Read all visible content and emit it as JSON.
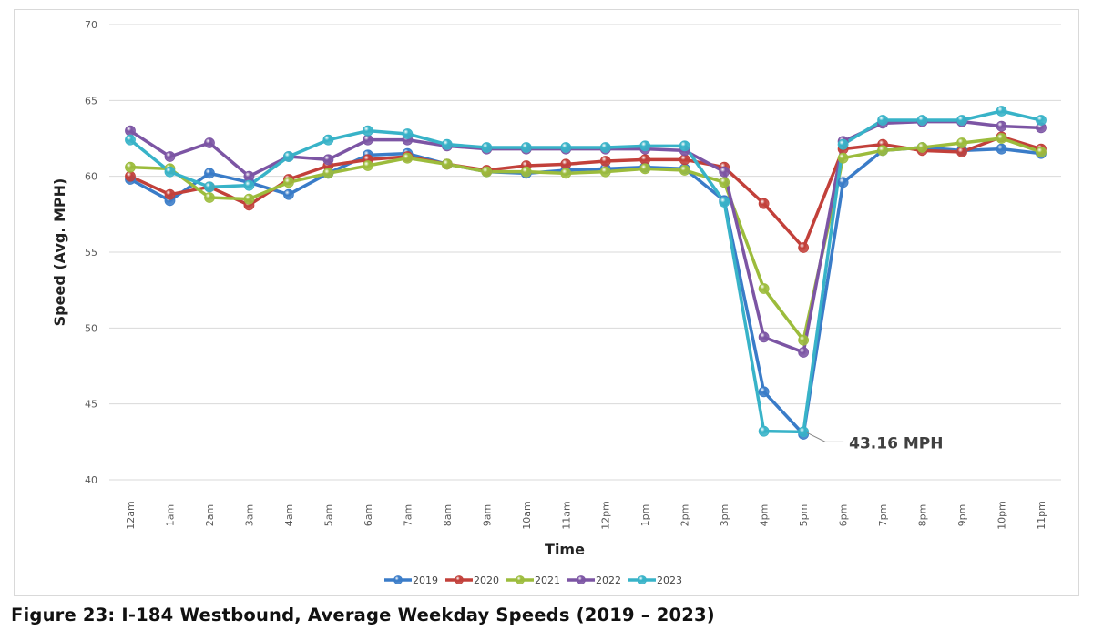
{
  "chart_data": {
    "type": "line",
    "title": "",
    "xlabel": "Time",
    "ylabel": "Speed (Avg. MPH)",
    "ylim": [
      40,
      70
    ],
    "yticks": [
      40,
      45,
      50,
      55,
      60,
      65,
      70
    ],
    "grid": true,
    "legend_position": "bottom",
    "categories": [
      "12am",
      "1am",
      "2am",
      "3am",
      "4am",
      "5am",
      "6am",
      "7am",
      "8am",
      "9am",
      "10am",
      "11am",
      "12pm",
      "1pm",
      "2pm",
      "3pm",
      "4pm",
      "5pm",
      "6pm",
      "7pm",
      "8pm",
      "9pm",
      "10pm",
      "11pm"
    ],
    "series": [
      {
        "name": "2019",
        "color": "#3a7cc8",
        "values": [
          59.8,
          58.4,
          60.2,
          59.6,
          58.8,
          60.2,
          61.4,
          61.5,
          60.8,
          60.3,
          60.2,
          60.4,
          60.5,
          60.6,
          60.5,
          58.4,
          45.8,
          43.0,
          59.6,
          61.7,
          61.9,
          61.7,
          61.8,
          61.5
        ]
      },
      {
        "name": "2020",
        "color": "#c2403a",
        "values": [
          60.0,
          58.8,
          59.3,
          58.1,
          59.8,
          60.7,
          61.1,
          61.3,
          60.8,
          60.4,
          60.7,
          60.8,
          61.0,
          61.1,
          61.1,
          60.6,
          58.2,
          55.3,
          61.8,
          62.1,
          61.7,
          61.6,
          62.6,
          61.8
        ]
      },
      {
        "name": "2021",
        "color": "#9cbc3c",
        "values": [
          60.6,
          60.5,
          58.6,
          58.5,
          59.6,
          60.2,
          60.7,
          61.2,
          60.8,
          60.3,
          60.3,
          60.2,
          60.3,
          60.5,
          60.4,
          59.6,
          52.6,
          49.2,
          61.2,
          61.7,
          61.9,
          62.2,
          62.5,
          61.6
        ]
      },
      {
        "name": "2022",
        "color": "#7c55a4",
        "values": [
          63.0,
          61.3,
          62.2,
          60.0,
          61.3,
          61.1,
          62.4,
          62.4,
          62.0,
          61.8,
          61.8,
          61.8,
          61.8,
          61.8,
          61.7,
          60.3,
          49.4,
          48.4,
          62.3,
          63.5,
          63.6,
          63.6,
          63.3,
          63.2
        ]
      },
      {
        "name": "2023",
        "color": "#38b3c8",
        "values": [
          62.4,
          60.3,
          59.3,
          59.4,
          61.3,
          62.4,
          63.0,
          62.8,
          62.1,
          61.9,
          61.9,
          61.9,
          61.9,
          62.0,
          62.0,
          58.3,
          43.2,
          43.16,
          62.1,
          63.7,
          63.7,
          63.7,
          64.3,
          63.7
        ]
      }
    ],
    "annotations": [
      {
        "text": "43.16 MPH",
        "series": "2023",
        "category": "5pm",
        "value": 43.16
      }
    ]
  },
  "caption": "Figure 23: I-184 Westbound, Average Weekday Speeds (2019 – 2023)"
}
